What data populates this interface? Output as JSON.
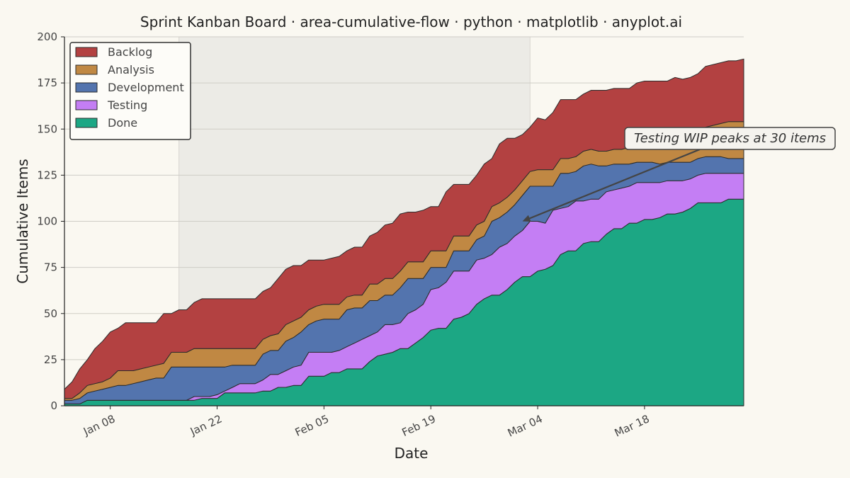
{
  "chart_data": {
    "type": "area",
    "stacked": true,
    "title": "Sprint Kanban Board · area-cumulative-flow · python · matplotlib · anyplot.ai",
    "xlabel": "Date",
    "ylabel": "Cumulative Items",
    "ylim": [
      0,
      200
    ],
    "yticks": [
      0,
      25,
      50,
      75,
      100,
      125,
      150,
      175,
      200
    ],
    "x_start": "2024-01-02",
    "x_end": "2024-03-31",
    "xticks": [
      {
        "date": "2024-01-08",
        "label": "Jan 08"
      },
      {
        "date": "2024-01-22",
        "label": "Jan 22"
      },
      {
        "date": "2024-02-05",
        "label": "Feb 05"
      },
      {
        "date": "2024-02-19",
        "label": "Feb 19"
      },
      {
        "date": "2024-03-04",
        "label": "Mar 04"
      },
      {
        "date": "2024-03-18",
        "label": "Mar 18"
      }
    ],
    "grid": "horizontal",
    "legend_position": "top-left",
    "highlight_span": {
      "from": "2024-01-17",
      "to": "2024-03-03",
      "color": "#ecebe6"
    },
    "annotation": {
      "text": "Testing WIP peaks at 30 items",
      "point": {
        "date": "2024-03-02",
        "y": 100
      }
    },
    "x": [
      "2024-01-02",
      "2024-01-03",
      "2024-01-04",
      "2024-01-05",
      "2024-01-06",
      "2024-01-07",
      "2024-01-08",
      "2024-01-09",
      "2024-01-10",
      "2024-01-11",
      "2024-01-12",
      "2024-01-13",
      "2024-01-14",
      "2024-01-15",
      "2024-01-16",
      "2024-01-17",
      "2024-01-18",
      "2024-01-19",
      "2024-01-20",
      "2024-01-21",
      "2024-01-22",
      "2024-01-23",
      "2024-01-24",
      "2024-01-25",
      "2024-01-26",
      "2024-01-27",
      "2024-01-28",
      "2024-01-29",
      "2024-01-30",
      "2024-01-31",
      "2024-02-01",
      "2024-02-02",
      "2024-02-03",
      "2024-02-04",
      "2024-02-05",
      "2024-02-06",
      "2024-02-07",
      "2024-02-08",
      "2024-02-09",
      "2024-02-10",
      "2024-02-11",
      "2024-02-12",
      "2024-02-13",
      "2024-02-14",
      "2024-02-15",
      "2024-02-16",
      "2024-02-17",
      "2024-02-18",
      "2024-02-19",
      "2024-02-20",
      "2024-02-21",
      "2024-02-22",
      "2024-02-23",
      "2024-02-24",
      "2024-02-25",
      "2024-02-26",
      "2024-02-27",
      "2024-02-28",
      "2024-02-29",
      "2024-03-01",
      "2024-03-02",
      "2024-03-03",
      "2024-03-04",
      "2024-03-05",
      "2024-03-06",
      "2024-03-07",
      "2024-03-08",
      "2024-03-09",
      "2024-03-10",
      "2024-03-11",
      "2024-03-12",
      "2024-03-13",
      "2024-03-14",
      "2024-03-15",
      "2024-03-16",
      "2024-03-17",
      "2024-03-18",
      "2024-03-19",
      "2024-03-20",
      "2024-03-21",
      "2024-03-22",
      "2024-03-23",
      "2024-03-24",
      "2024-03-25",
      "2024-03-26",
      "2024-03-27",
      "2024-03-28",
      "2024-03-29",
      "2024-03-30",
      "2024-03-31"
    ],
    "series": [
      {
        "name": "Done",
        "color": "#1ca784",
        "values": [
          1,
          1,
          1,
          3,
          3,
          3,
          3,
          3,
          3,
          3,
          3,
          3,
          3,
          3,
          3,
          3,
          3,
          3,
          4,
          4,
          4,
          7,
          7,
          7,
          7,
          7,
          8,
          8,
          10,
          10,
          11,
          11,
          16,
          16,
          16,
          18,
          18,
          20,
          20,
          20,
          24,
          27,
          28,
          29,
          31,
          31,
          34,
          37,
          41,
          42,
          42,
          47,
          48,
          50,
          55,
          58,
          60,
          60,
          63,
          67,
          70,
          70,
          73,
          74,
          76,
          82,
          84,
          84,
          88,
          89,
          89,
          93,
          96,
          96,
          99,
          99,
          101,
          101,
          102,
          104,
          104,
          105,
          107,
          110,
          110,
          110,
          110,
          112,
          112,
          112
        ]
      },
      {
        "name": "Testing",
        "color": "#c47ef4",
        "values": [
          0,
          0,
          0,
          0,
          0,
          0,
          0,
          0,
          0,
          0,
          0,
          0,
          0,
          0,
          0,
          0,
          0,
          2,
          1,
          1,
          2,
          1,
          3,
          5,
          5,
          5,
          6,
          9,
          7,
          9,
          10,
          11,
          13,
          13,
          13,
          11,
          12,
          12,
          14,
          16,
          14,
          13,
          16,
          15,
          14,
          19,
          18,
          18,
          22,
          22,
          25,
          26,
          25,
          23,
          24,
          22,
          22,
          26,
          25,
          25,
          25,
          30,
          27,
          25,
          30,
          25,
          24,
          27,
          23,
          23,
          23,
          23,
          21,
          22,
          20,
          22,
          20,
          20,
          19,
          18,
          18,
          17,
          16,
          15,
          16,
          16,
          16,
          14,
          14,
          14
        ]
      },
      {
        "name": "Development",
        "color": "#5374ae",
        "values": [
          2,
          2,
          3,
          4,
          5,
          6,
          7,
          8,
          8,
          9,
          10,
          11,
          12,
          12,
          18,
          18,
          18,
          16,
          16,
          16,
          15,
          13,
          12,
          10,
          10,
          10,
          14,
          13,
          13,
          16,
          16,
          18,
          15,
          17,
          18,
          18,
          17,
          20,
          19,
          17,
          19,
          17,
          16,
          16,
          19,
          19,
          17,
          14,
          12,
          11,
          8,
          11,
          11,
          11,
          11,
          12,
          18,
          16,
          17,
          17,
          19,
          19,
          19,
          20,
          13,
          19,
          18,
          16,
          19,
          19,
          18,
          14,
          14,
          13,
          12,
          11,
          11,
          11,
          10,
          10,
          10,
          10,
          9,
          9,
          9,
          9,
          9,
          8,
          8,
          8
        ]
      },
      {
        "name": "Analysis",
        "color": "#c08843",
        "values": [
          1,
          1,
          3,
          4,
          4,
          4,
          5,
          8,
          8,
          7,
          7,
          7,
          7,
          8,
          8,
          8,
          8,
          10,
          10,
          10,
          10,
          10,
          9,
          9,
          9,
          9,
          8,
          8,
          9,
          9,
          9,
          8,
          8,
          8,
          8,
          8,
          8,
          7,
          7,
          7,
          9,
          9,
          9,
          9,
          9,
          9,
          9,
          9,
          9,
          9,
          9,
          8,
          8,
          8,
          8,
          8,
          8,
          8,
          8,
          8,
          8,
          8,
          9,
          9,
          9,
          8,
          8,
          8,
          8,
          8,
          8,
          8,
          8,
          8,
          9,
          9,
          9,
          9,
          10,
          10,
          11,
          12,
          13,
          13,
          16,
          17,
          18,
          20,
          20,
          20
        ]
      },
      {
        "name": "Backlog",
        "color": "#b34141",
        "values": [
          5,
          9,
          13,
          14,
          19,
          22,
          25,
          23,
          26,
          26,
          25,
          24,
          23,
          27,
          21,
          23,
          23,
          25,
          27,
          27,
          27,
          27,
          27,
          27,
          27,
          27,
          26,
          26,
          30,
          30,
          30,
          28,
          27,
          25,
          24,
          25,
          26,
          25,
          26,
          26,
          26,
          28,
          29,
          30,
          31,
          27,
          27,
          28,
          24,
          24,
          32,
          28,
          28,
          28,
          27,
          31,
          26,
          32,
          32,
          28,
          25,
          24,
          28,
          27,
          31,
          32,
          32,
          31,
          31,
          32,
          33,
          33,
          33,
          33,
          32,
          34,
          35,
          35,
          35,
          34,
          35,
          33,
          33,
          33,
          33,
          33,
          33,
          33,
          33,
          34
        ]
      }
    ]
  }
}
